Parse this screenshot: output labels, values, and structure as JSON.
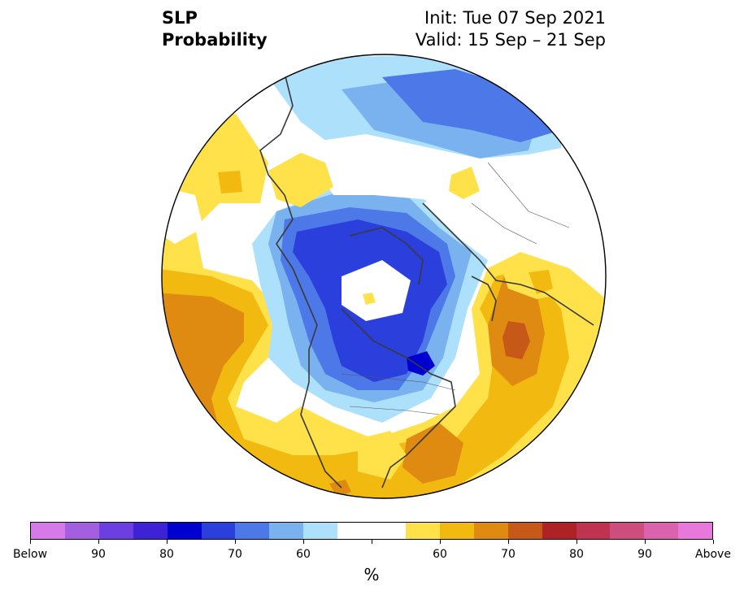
{
  "header": {
    "variable": "SLP",
    "product": "Probability",
    "init": "Init: Tue 07 Sep 2021",
    "valid": "Valid: 15 Sep – 21 Sep"
  },
  "colorbar": {
    "unit": "%",
    "colors": [
      "#d67aea",
      "#a45ee0",
      "#6b3fe2",
      "#3d22d6",
      "#0000d0",
      "#2a3fdc",
      "#4c78e8",
      "#7ab2f0",
      "#ace0fb",
      "#ffffff",
      "#ffffff",
      "#ffe14a",
      "#f2b911",
      "#df8b12",
      "#c65818",
      "#ae2124",
      "#c03350",
      "#cd4d7c",
      "#db62ac",
      "#e878dc"
    ],
    "labels": [
      "Below",
      "90",
      "80",
      "70",
      "60",
      "",
      "60",
      "70",
      "80",
      "90",
      "Above"
    ]
  },
  "map": {
    "projection": "north-polar-stereographic",
    "palette": {
      "light_blue": "#ace0fb",
      "sky_blue": "#7ab2f0",
      "blue": "#4c78e8",
      "royal_blue": "#2a3fdc",
      "dark_blue": "#0000d0",
      "yellow": "#ffe14a",
      "gold": "#f2b911",
      "orange": "#df8b12",
      "rust": "#c65818"
    }
  }
}
